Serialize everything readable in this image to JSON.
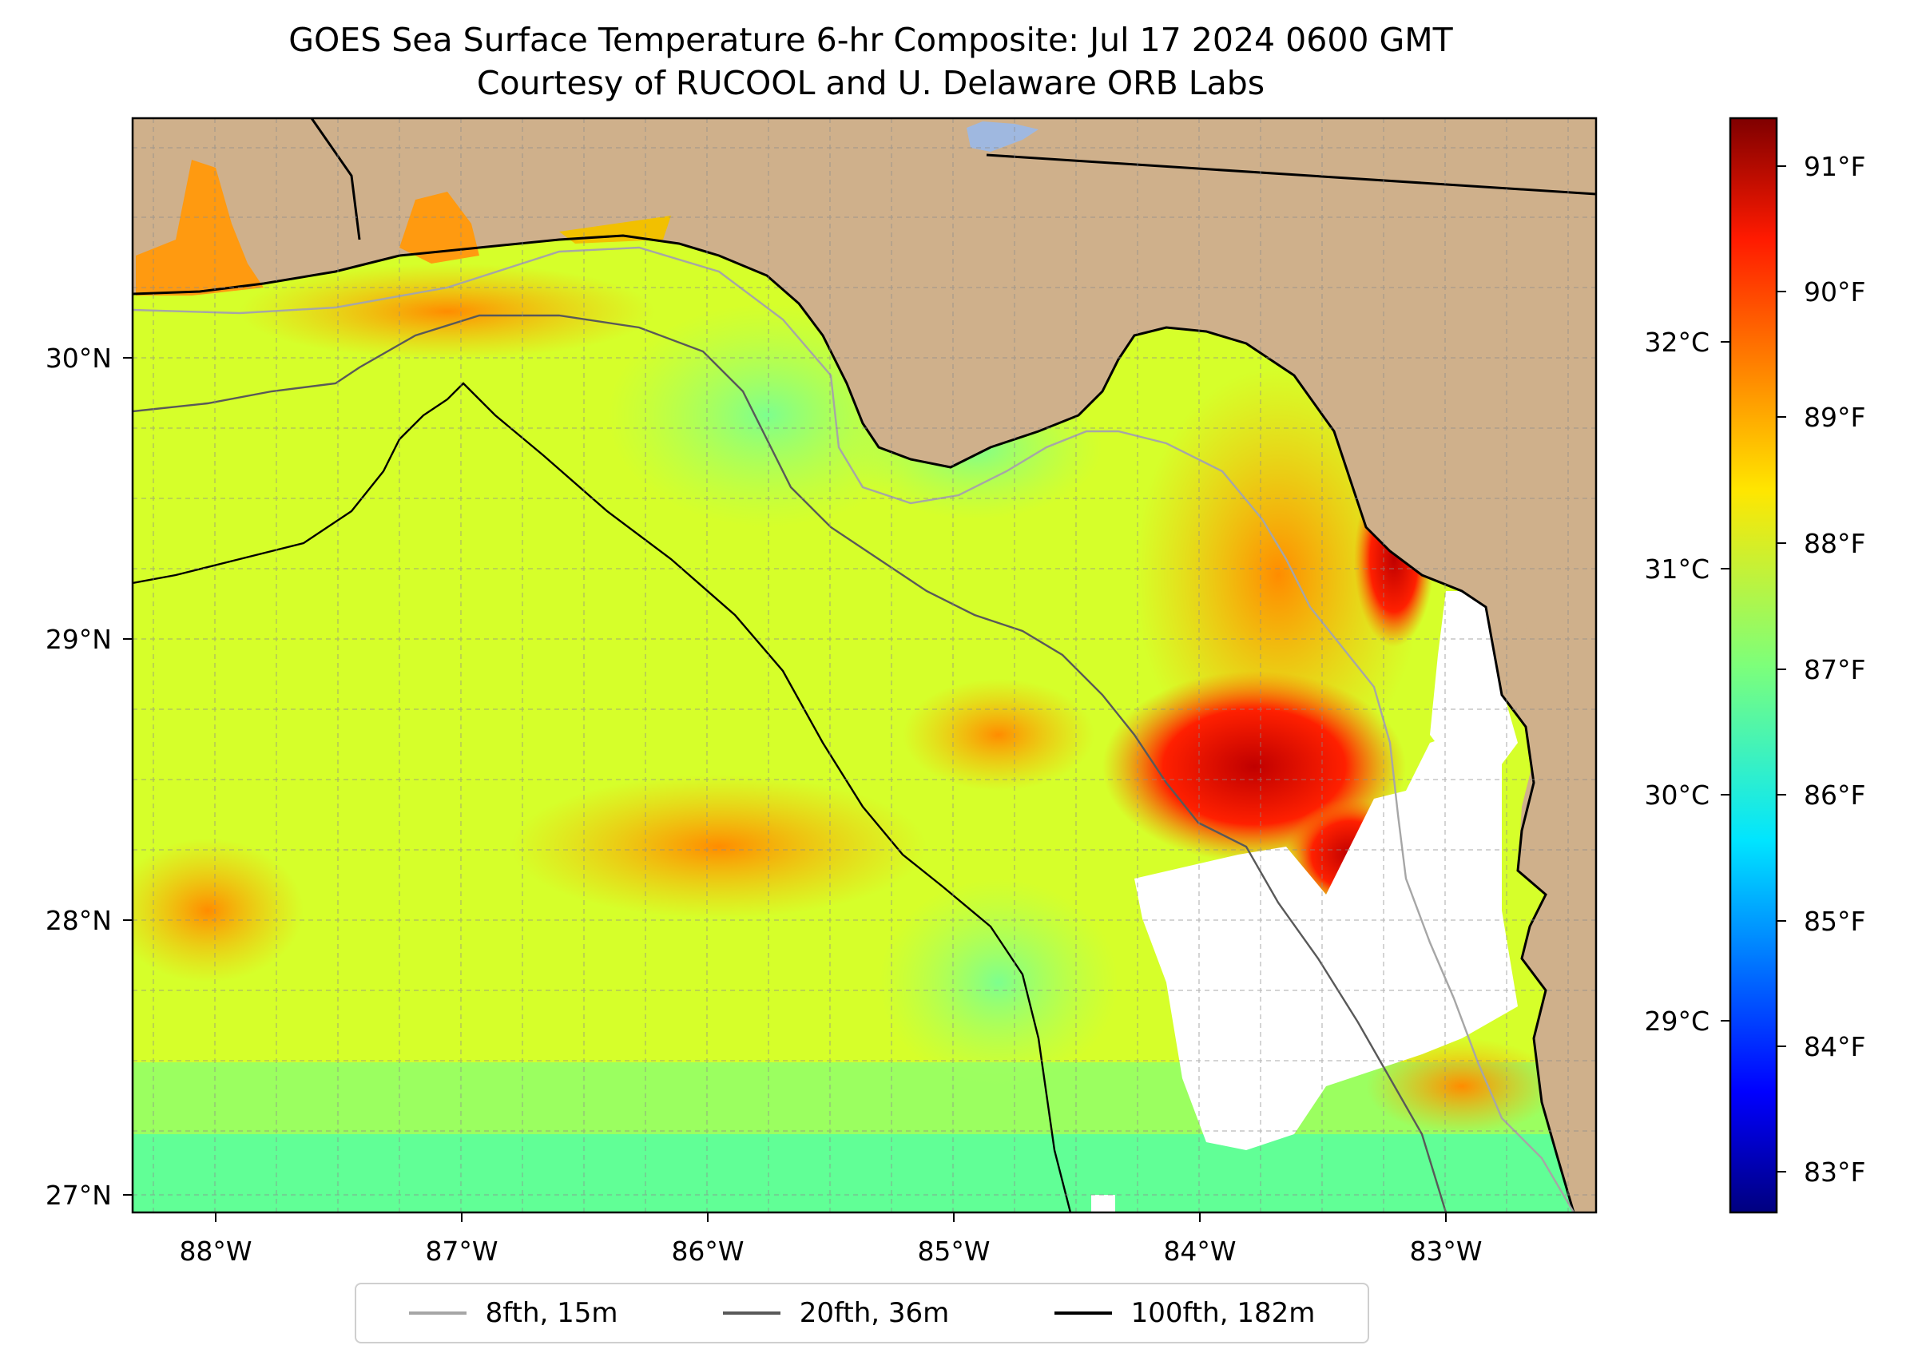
{
  "title": {
    "line1": "GOES Sea Surface Temperature 6-hr Composite: Jul 17 2024 0600 GMT",
    "line2": "Courtesy of RUCOOL and U. Delaware ORB Labs"
  },
  "map": {
    "lon_range": [
      -88.33,
      -82.37
    ],
    "lat_range": [
      26.93,
      30.84
    ],
    "lon_ticks": [
      "88°W",
      "87°W",
      "86°W",
      "85°W",
      "84°W",
      "83°W"
    ],
    "lat_ticks": [
      "30°N",
      "29°N",
      "28°N",
      "27°N"
    ],
    "land_color": "#cfb08b",
    "lake_color": "#9fb8e0",
    "no_data_color": "#ffffff",
    "gridlines": true
  },
  "colorbar": {
    "colormap": "jet",
    "range_f": [
      82.7,
      91.4
    ],
    "fahrenheit_ticks": [
      "83°F",
      "84°F",
      "85°F",
      "86°F",
      "87°F",
      "88°F",
      "89°F",
      "90°F",
      "91°F"
    ],
    "celsius_ticks": [
      "29°C",
      "30°C",
      "31°C",
      "32°C"
    ]
  },
  "legend": {
    "items": [
      {
        "label": "8fth, 15m",
        "color": "#a6a6a6"
      },
      {
        "label": "20fth, 36m",
        "color": "#595959"
      },
      {
        "label": "100fth, 182m",
        "color": "#000000"
      }
    ]
  }
}
